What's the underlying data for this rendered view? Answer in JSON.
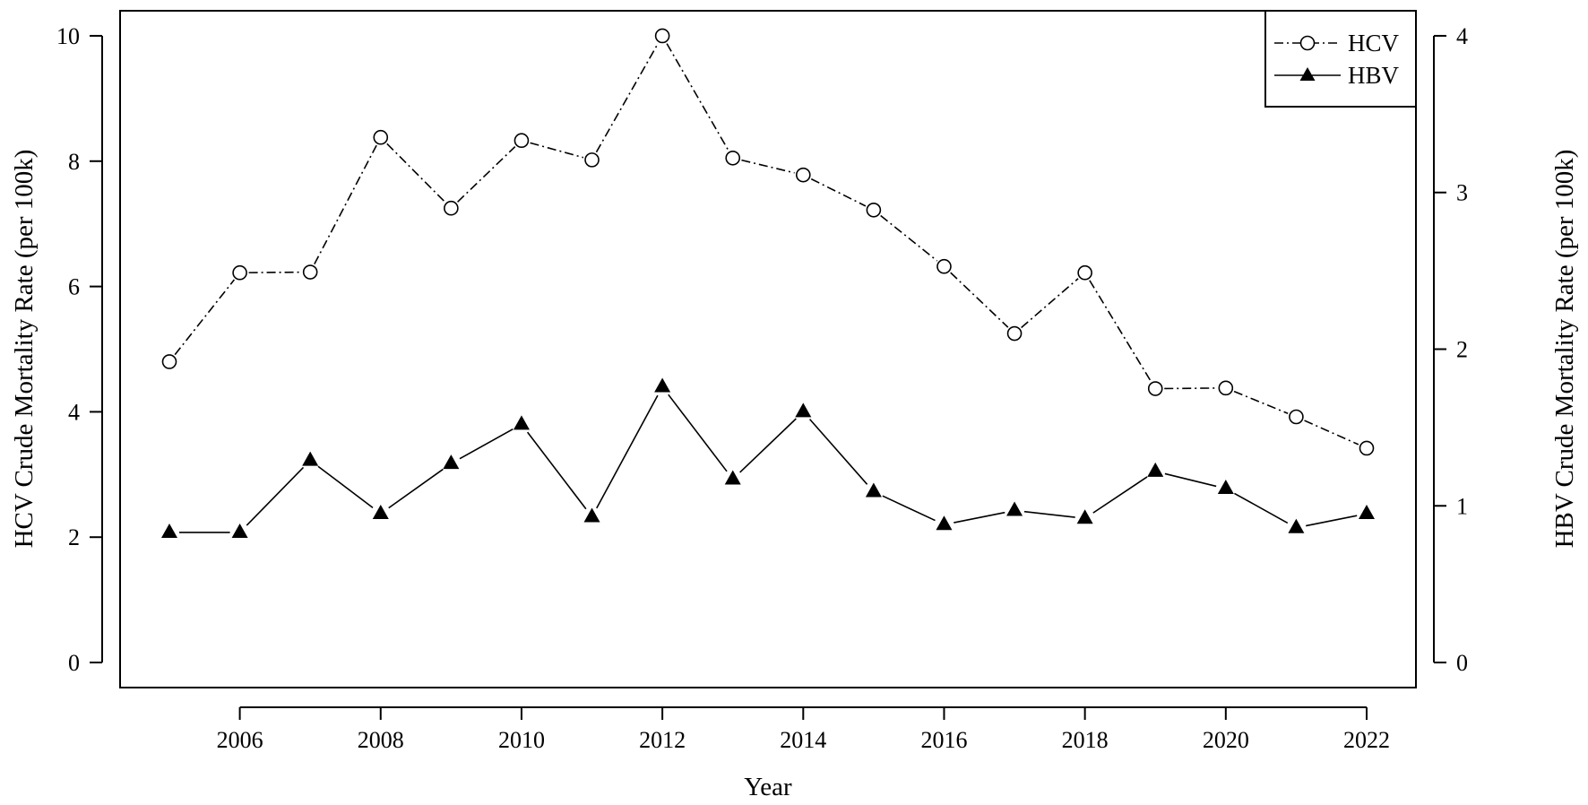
{
  "chart_data": {
    "type": "line",
    "title": "",
    "xlabel": "Year",
    "ylabel": "HCV Crude Mortality Rate (per 100k)",
    "y2label": "HBV Crude Mortality Rate (per 100k)",
    "xlim": [
      2004.3,
      2022.7
    ],
    "ylim": [
      -0.4,
      10.4
    ],
    "y2lim": [
      -0.16,
      4.16
    ],
    "x_ticks": [
      2006,
      2008,
      2010,
      2012,
      2014,
      2016,
      2018,
      2020,
      2022
    ],
    "y_ticks": [
      0,
      2,
      4,
      6,
      8,
      10
    ],
    "y2_ticks": [
      0,
      1,
      2,
      3,
      4
    ],
    "grid": false,
    "legend": {
      "placement": "top-right",
      "entries": [
        "HCV",
        "HBV"
      ]
    },
    "x": [
      2005,
      2006,
      2007,
      2008,
      2009,
      2010,
      2011,
      2012,
      2013,
      2014,
      2015,
      2016,
      2017,
      2018,
      2019,
      2020,
      2021,
      2022
    ],
    "series": [
      {
        "name": "HCV",
        "axis": "left",
        "marker": "open-circle",
        "line_style": "dash-dot",
        "values": [
          4.8,
          6.22,
          6.23,
          8.38,
          7.25,
          8.33,
          8.02,
          10.0,
          8.05,
          7.78,
          7.22,
          6.32,
          5.25,
          6.22,
          4.37,
          4.38,
          3.92,
          3.42
        ]
      },
      {
        "name": "HBV",
        "axis": "right",
        "marker": "filled-triangle",
        "line_style": "solid",
        "values": [
          0.83,
          0.83,
          1.29,
          0.95,
          1.27,
          1.52,
          0.93,
          1.76,
          1.17,
          1.6,
          1.09,
          0.88,
          0.97,
          0.92,
          1.22,
          1.11,
          0.86,
          0.95
        ]
      }
    ]
  }
}
